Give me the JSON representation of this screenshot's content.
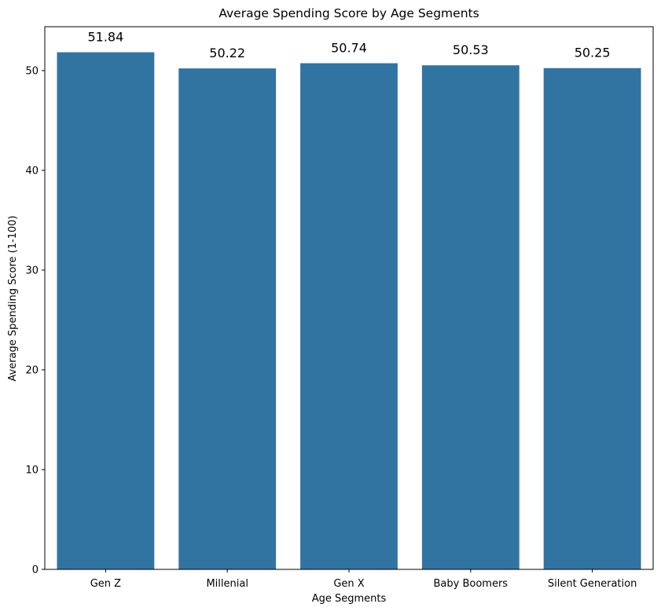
{
  "chart_data": {
    "type": "bar",
    "title": "Average Spending Score by Age Segments",
    "xlabel": "Age Segments",
    "ylabel": "Average Spending Score (1-100)",
    "categories": [
      "Gen Z",
      "Millenial",
      "Gen X",
      "Baby Boomers",
      "Silent Generation"
    ],
    "values": [
      51.84,
      50.22,
      50.74,
      50.53,
      50.25
    ],
    "data_labels": [
      "51.84",
      "50.22",
      "50.74",
      "50.53",
      "50.25"
    ],
    "ylim": [
      0,
      54.4
    ],
    "yticks": [
      0,
      10,
      20,
      30,
      40,
      50
    ],
    "grid": false,
    "legend": "none",
    "bar_color": "#3274a1"
  }
}
